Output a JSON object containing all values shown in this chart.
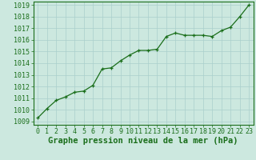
{
  "x": [
    0,
    1,
    2,
    3,
    4,
    5,
    6,
    7,
    8,
    9,
    10,
    11,
    12,
    13,
    14,
    15,
    16,
    17,
    18,
    19,
    20,
    21,
    22,
    23
  ],
  "y": [
    1009.3,
    1010.1,
    1010.8,
    1011.1,
    1011.5,
    1011.6,
    1012.1,
    1013.5,
    1013.6,
    1014.2,
    1014.7,
    1015.1,
    1015.1,
    1015.2,
    1016.3,
    1016.6,
    1016.4,
    1016.4,
    1016.4,
    1016.3,
    1016.8,
    1017.1,
    1018.0,
    1019.0
  ],
  "line_color": "#1a6e1a",
  "marker": "+",
  "marker_color": "#1a6e1a",
  "bg_color": "#cce8df",
  "grid_color": "#aacfcc",
  "xlabel": "Graphe pression niveau de la mer (hPa)",
  "xlabel_color": "#1a6e1a",
  "tick_color": "#1a6e1a",
  "spine_color": "#1a6e1a",
  "ylim": [
    1009,
    1019
  ],
  "xlim": [
    -0.5,
    23.5
  ],
  "yticks": [
    1009,
    1010,
    1011,
    1012,
    1013,
    1014,
    1015,
    1016,
    1017,
    1018,
    1019
  ],
  "xticks": [
    0,
    1,
    2,
    3,
    4,
    5,
    6,
    7,
    8,
    9,
    10,
    11,
    12,
    13,
    14,
    15,
    16,
    17,
    18,
    19,
    20,
    21,
    22,
    23
  ],
  "font_size": 6,
  "xlabel_fontsize": 7.5,
  "linewidth": 0.9,
  "markersize": 3.5
}
